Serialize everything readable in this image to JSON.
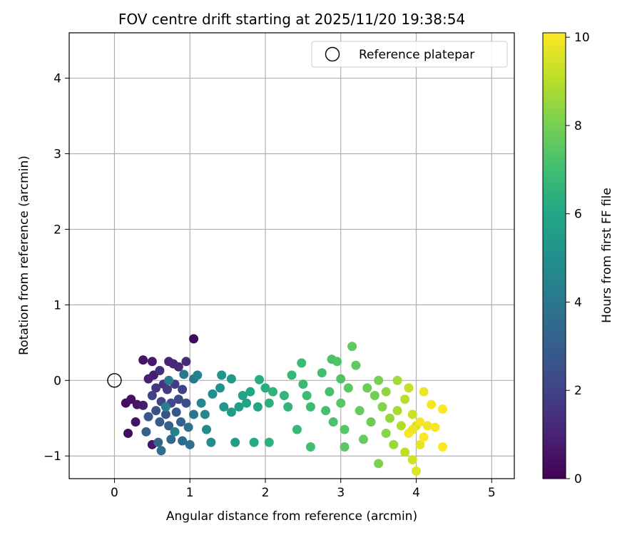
{
  "chart_data": {
    "type": "scatter",
    "title": "FOV centre drift starting at 2025/11/20 19:38:54",
    "xlabel": "Angular distance from reference (arcmin)",
    "ylabel": "Rotation from reference (arcmin)",
    "xlim": [
      -0.6,
      5.3
    ],
    "ylim": [
      -1.3,
      4.6
    ],
    "xticks": [
      0,
      1,
      2,
      3,
      4,
      5
    ],
    "yticks": [
      -1,
      0,
      1,
      2,
      3,
      4
    ],
    "grid": true,
    "legend": {
      "position": "top-right",
      "entries": [
        "Reference platepar"
      ]
    },
    "reference_point": {
      "x": 0,
      "y": 0,
      "label": "Reference platepar"
    },
    "colorbar": {
      "label": "Hours from first FF file",
      "range": [
        0,
        10.1
      ],
      "ticks": [
        0,
        2,
        4,
        6,
        8,
        10
      ],
      "colormap": "viridis"
    },
    "series": [
      {
        "name": "FOV centre",
        "points": [
          {
            "x": 1.05,
            "y": 0.55,
            "h": 0.2
          },
          {
            "x": 0.15,
            "y": -0.3,
            "h": 0.3
          },
          {
            "x": 0.22,
            "y": -0.25,
            "h": 0.4
          },
          {
            "x": 0.18,
            "y": -0.7,
            "h": 0.3
          },
          {
            "x": 0.28,
            "y": -0.55,
            "h": 0.5
          },
          {
            "x": 0.3,
            "y": -0.32,
            "h": 0.6
          },
          {
            "x": 0.38,
            "y": 0.27,
            "h": 0.5
          },
          {
            "x": 0.5,
            "y": 0.25,
            "h": 0.7
          },
          {
            "x": 0.52,
            "y": 0.07,
            "h": 0.8
          },
          {
            "x": 0.45,
            "y": 0.02,
            "h": 0.9
          },
          {
            "x": 0.38,
            "y": -0.33,
            "h": 0.8
          },
          {
            "x": 0.5,
            "y": -0.85,
            "h": 0.6
          },
          {
            "x": 0.72,
            "y": 0.25,
            "h": 1.0
          },
          {
            "x": 0.78,
            "y": 0.22,
            "h": 1.1
          },
          {
            "x": 0.85,
            "y": 0.18,
            "h": 1.2
          },
          {
            "x": 0.95,
            "y": 0.25,
            "h": 1.3
          },
          {
            "x": 0.6,
            "y": 0.13,
            "h": 1.4
          },
          {
            "x": 0.65,
            "y": -0.05,
            "h": 1.5
          },
          {
            "x": 0.55,
            "y": -0.1,
            "h": 1.6
          },
          {
            "x": 0.7,
            "y": -0.12,
            "h": 1.7
          },
          {
            "x": 0.8,
            "y": -0.05,
            "h": 1.8
          },
          {
            "x": 0.9,
            "y": -0.12,
            "h": 1.9
          },
          {
            "x": 0.5,
            "y": -0.2,
            "h": 2.0
          },
          {
            "x": 0.62,
            "y": -0.28,
            "h": 2.1
          },
          {
            "x": 0.75,
            "y": -0.3,
            "h": 2.2
          },
          {
            "x": 0.85,
            "y": -0.25,
            "h": 2.3
          },
          {
            "x": 0.95,
            "y": -0.3,
            "h": 2.4
          },
          {
            "x": 0.55,
            "y": -0.4,
            "h": 2.5
          },
          {
            "x": 0.68,
            "y": -0.45,
            "h": 2.6
          },
          {
            "x": 0.82,
            "y": -0.42,
            "h": 2.7
          },
          {
            "x": 0.45,
            "y": -0.48,
            "h": 2.8
          },
          {
            "x": 0.6,
            "y": -0.55,
            "h": 2.9
          },
          {
            "x": 0.72,
            "y": -0.6,
            "h": 3.0
          },
          {
            "x": 0.88,
            "y": -0.55,
            "h": 3.1
          },
          {
            "x": 0.42,
            "y": -0.68,
            "h": 3.2
          },
          {
            "x": 0.58,
            "y": -0.82,
            "h": 3.3
          },
          {
            "x": 0.75,
            "y": -0.78,
            "h": 3.4
          },
          {
            "x": 0.9,
            "y": -0.8,
            "h": 3.5
          },
          {
            "x": 0.62,
            "y": -0.93,
            "h": 3.6
          },
          {
            "x": 1.0,
            "y": -0.85,
            "h": 3.7
          },
          {
            "x": 0.98,
            "y": -0.62,
            "h": 3.8
          },
          {
            "x": 1.05,
            "y": -0.45,
            "h": 3.9
          },
          {
            "x": 0.92,
            "y": 0.08,
            "h": 4.0
          },
          {
            "x": 1.05,
            "y": 0.02,
            "h": 4.1
          },
          {
            "x": 0.72,
            "y": 0.0,
            "h": 4.2
          },
          {
            "x": 0.68,
            "y": -0.35,
            "h": 4.3
          },
          {
            "x": 0.8,
            "y": -0.68,
            "h": 4.4
          },
          {
            "x": 1.1,
            "y": 0.07,
            "h": 4.5
          },
          {
            "x": 1.15,
            "y": -0.3,
            "h": 4.6
          },
          {
            "x": 1.2,
            "y": -0.45,
            "h": 4.7
          },
          {
            "x": 1.22,
            "y": -0.65,
            "h": 4.8
          },
          {
            "x": 1.28,
            "y": -0.82,
            "h": 4.9
          },
          {
            "x": 1.3,
            "y": -0.18,
            "h": 5.0
          },
          {
            "x": 1.4,
            "y": -0.1,
            "h": 5.1
          },
          {
            "x": 1.42,
            "y": 0.07,
            "h": 5.2
          },
          {
            "x": 1.45,
            "y": -0.35,
            "h": 5.3
          },
          {
            "x": 1.55,
            "y": 0.02,
            "h": 5.4
          },
          {
            "x": 1.55,
            "y": -0.42,
            "h": 5.5
          },
          {
            "x": 1.6,
            "y": -0.82,
            "h": 5.6
          },
          {
            "x": 1.65,
            "y": -0.35,
            "h": 5.7
          },
          {
            "x": 1.7,
            "y": -0.2,
            "h": 5.8
          },
          {
            "x": 1.75,
            "y": -0.3,
            "h": 5.9
          },
          {
            "x": 1.8,
            "y": -0.15,
            "h": 6.0
          },
          {
            "x": 1.9,
            "y": -0.35,
            "h": 6.0
          },
          {
            "x": 1.85,
            "y": -0.82,
            "h": 6.1
          },
          {
            "x": 1.92,
            "y": 0.01,
            "h": 6.2
          },
          {
            "x": 2.0,
            "y": -0.1,
            "h": 6.3
          },
          {
            "x": 2.05,
            "y": -0.3,
            "h": 6.4
          },
          {
            "x": 2.05,
            "y": -0.82,
            "h": 6.4
          },
          {
            "x": 2.1,
            "y": -0.15,
            "h": 6.5
          },
          {
            "x": 2.25,
            "y": -0.2,
            "h": 6.6
          },
          {
            "x": 2.3,
            "y": -0.35,
            "h": 6.6
          },
          {
            "x": 2.35,
            "y": 0.07,
            "h": 6.7
          },
          {
            "x": 2.42,
            "y": -0.65,
            "h": 6.7
          },
          {
            "x": 2.48,
            "y": 0.23,
            "h": 6.8
          },
          {
            "x": 2.5,
            "y": -0.05,
            "h": 6.8
          },
          {
            "x": 2.55,
            "y": -0.2,
            "h": 6.9
          },
          {
            "x": 2.6,
            "y": -0.35,
            "h": 6.9
          },
          {
            "x": 2.6,
            "y": -0.88,
            "h": 7.0
          },
          {
            "x": 2.75,
            "y": 0.1,
            "h": 7.0
          },
          {
            "x": 2.8,
            "y": -0.4,
            "h": 7.1
          },
          {
            "x": 2.85,
            "y": -0.15,
            "h": 7.1
          },
          {
            "x": 2.88,
            "y": 0.28,
            "h": 7.2
          },
          {
            "x": 2.9,
            "y": -0.55,
            "h": 7.2
          },
          {
            "x": 2.95,
            "y": 0.25,
            "h": 7.3
          },
          {
            "x": 3.0,
            "y": 0.02,
            "h": 7.3
          },
          {
            "x": 3.0,
            "y": -0.3,
            "h": 7.4
          },
          {
            "x": 3.05,
            "y": -0.65,
            "h": 7.4
          },
          {
            "x": 3.05,
            "y": -0.88,
            "h": 7.5
          },
          {
            "x": 3.1,
            "y": -0.1,
            "h": 7.5
          },
          {
            "x": 3.15,
            "y": 0.45,
            "h": 7.6
          },
          {
            "x": 3.2,
            "y": 0.2,
            "h": 7.6
          },
          {
            "x": 3.25,
            "y": -0.4,
            "h": 7.7
          },
          {
            "x": 3.3,
            "y": -0.78,
            "h": 7.7
          },
          {
            "x": 3.35,
            "y": -0.1,
            "h": 7.8
          },
          {
            "x": 3.4,
            "y": -0.55,
            "h": 7.8
          },
          {
            "x": 3.45,
            "y": -0.2,
            "h": 7.9
          },
          {
            "x": 3.5,
            "y": 0.0,
            "h": 8.0
          },
          {
            "x": 3.5,
            "y": -1.1,
            "h": 8.1
          },
          {
            "x": 3.55,
            "y": -0.35,
            "h": 8.2
          },
          {
            "x": 3.6,
            "y": -0.7,
            "h": 8.3
          },
          {
            "x": 3.6,
            "y": -0.15,
            "h": 8.4
          },
          {
            "x": 3.65,
            "y": -0.5,
            "h": 8.5
          },
          {
            "x": 3.7,
            "y": -0.85,
            "h": 8.6
          },
          {
            "x": 3.75,
            "y": 0.0,
            "h": 8.7
          },
          {
            "x": 3.75,
            "y": -0.4,
            "h": 8.8
          },
          {
            "x": 3.8,
            "y": -0.6,
            "h": 8.9
          },
          {
            "x": 3.85,
            "y": -0.25,
            "h": 9.0
          },
          {
            "x": 3.85,
            "y": -0.95,
            "h": 9.1
          },
          {
            "x": 3.9,
            "y": -0.1,
            "h": 9.2
          },
          {
            "x": 3.95,
            "y": -0.45,
            "h": 9.3
          },
          {
            "x": 3.95,
            "y": -1.05,
            "h": 9.4
          },
          {
            "x": 4.0,
            "y": -0.6,
            "h": 9.5
          },
          {
            "x": 4.0,
            "y": -1.2,
            "h": 9.6
          },
          {
            "x": 4.05,
            "y": -0.85,
            "h": 9.7
          },
          {
            "x": 4.1,
            "y": -0.15,
            "h": 9.8
          },
          {
            "x": 4.15,
            "y": -0.6,
            "h": 9.9
          },
          {
            "x": 4.2,
            "y": -0.32,
            "h": 10.0
          },
          {
            "x": 4.25,
            "y": -0.62,
            "h": 10.0
          },
          {
            "x": 4.35,
            "y": -0.38,
            "h": 10.1
          },
          {
            "x": 4.35,
            "y": -0.88,
            "h": 10.1
          },
          {
            "x": 3.9,
            "y": -0.7,
            "h": 10.0
          },
          {
            "x": 3.95,
            "y": -0.65,
            "h": 9.9
          },
          {
            "x": 4.05,
            "y": -0.55,
            "h": 10.0
          },
          {
            "x": 4.1,
            "y": -0.75,
            "h": 10.1
          }
        ]
      }
    ]
  }
}
